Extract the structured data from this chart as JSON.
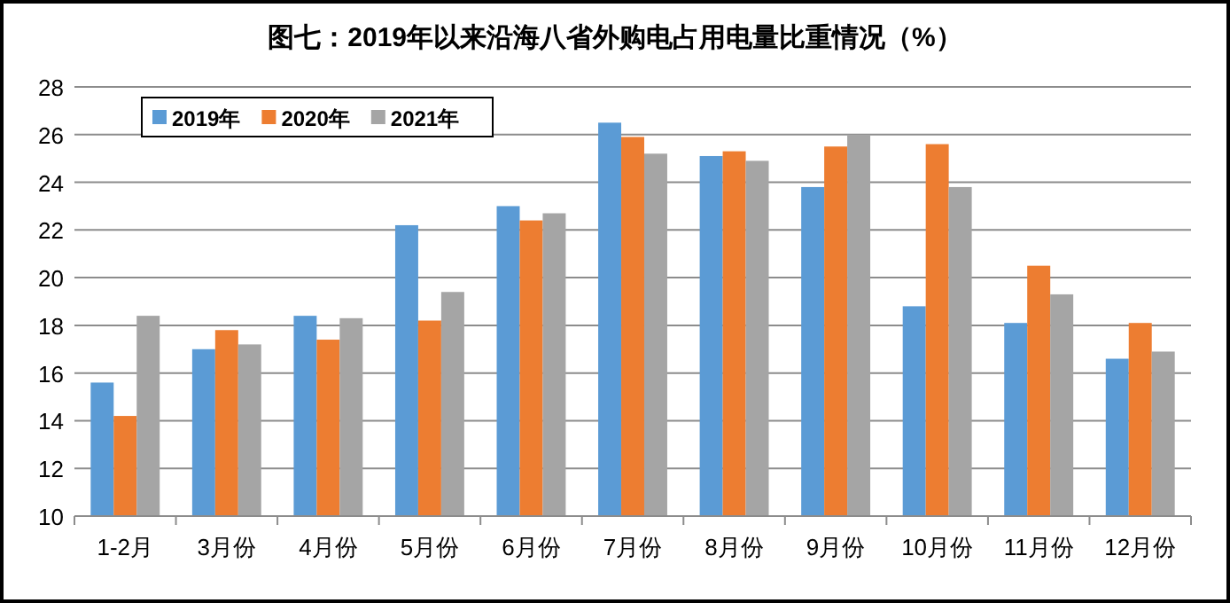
{
  "chart_data": {
    "type": "bar",
    "title": "图七：2019年以来沿海八省外购电占用电量比重情况（%）",
    "categories": [
      "1-2月",
      "3月份",
      "4月份",
      "5月份",
      "6月份",
      "7月份",
      "8月份",
      "9月份",
      "10月份",
      "11月份",
      "12月份"
    ],
    "series": [
      {
        "name": "2019年",
        "color": "#5b9bd5",
        "values": [
          15.6,
          17.0,
          18.4,
          22.2,
          23.0,
          26.5,
          25.1,
          23.8,
          18.8,
          18.1,
          16.6
        ]
      },
      {
        "name": "2020年",
        "color": "#ed7d31",
        "values": [
          14.2,
          17.8,
          17.4,
          18.2,
          22.4,
          25.9,
          25.3,
          25.5,
          25.6,
          20.5,
          18.1
        ]
      },
      {
        "name": "2021年",
        "color": "#a5a5a5",
        "values": [
          18.4,
          17.2,
          18.3,
          19.4,
          22.7,
          25.2,
          24.9,
          26.0,
          23.8,
          19.3,
          16.9
        ]
      }
    ],
    "ylim": [
      10,
      28
    ],
    "yticks": [
      10,
      12,
      14,
      16,
      18,
      20,
      22,
      24,
      26,
      28
    ],
    "grid": "y",
    "legend": "top left"
  }
}
